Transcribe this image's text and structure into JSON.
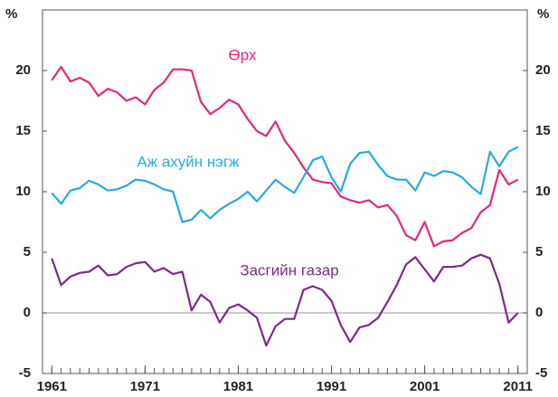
{
  "chart_data": {
    "type": "line",
    "ylabel": "%",
    "y2label": "%",
    "x": [
      1961,
      1962,
      1963,
      1964,
      1965,
      1966,
      1967,
      1968,
      1969,
      1970,
      1971,
      1972,
      1973,
      1974,
      1975,
      1976,
      1977,
      1978,
      1979,
      1980,
      1981,
      1982,
      1983,
      1984,
      1985,
      1986,
      1987,
      1988,
      1989,
      1990,
      1991,
      1992,
      1993,
      1994,
      1995,
      1996,
      1997,
      1998,
      1999,
      2000,
      2001,
      2002,
      2003,
      2004,
      2005,
      2006,
      2007,
      2008,
      2009,
      2010,
      2011
    ],
    "xlim": [
      1960,
      2012
    ],
    "xticks": [
      1961,
      1971,
      1981,
      1991,
      2001,
      2011
    ],
    "ylim": [
      -5,
      25
    ],
    "yticks": [
      -5,
      0,
      5,
      10,
      15,
      20
    ],
    "y2lim": [
      -5,
      25
    ],
    "y2ticks": [
      -5,
      0,
      5,
      10,
      15,
      20
    ],
    "series": [
      {
        "name": "Өрх",
        "color": "#e2287f",
        "values": [
          19.2,
          20.3,
          19.1,
          19.4,
          19.0,
          17.9,
          18.5,
          18.2,
          17.5,
          17.8,
          17.2,
          18.4,
          19.0,
          20.1,
          20.1,
          20.0,
          17.4,
          16.4,
          16.9,
          17.6,
          17.2,
          16.0,
          15.0,
          14.6,
          15.8,
          14.2,
          13.2,
          12.0,
          11.0,
          10.8,
          10.7,
          9.6,
          9.3,
          9.1,
          9.3,
          8.7,
          8.9,
          8.0,
          6.4,
          6.0,
          7.5,
          5.5,
          5.9,
          6.0,
          6.6,
          7.0,
          8.3,
          8.9,
          11.8,
          10.6,
          11.0
        ]
      },
      {
        "name": "Аж ахуйн нэгж",
        "color": "#2aa9e0",
        "values": [
          9.9,
          9.0,
          10.1,
          10.3,
          10.9,
          10.6,
          10.1,
          10.2,
          10.5,
          11.0,
          10.9,
          10.6,
          10.2,
          10.0,
          7.5,
          7.7,
          8.5,
          7.8,
          8.5,
          9.0,
          9.4,
          10.0,
          9.2,
          10.1,
          11.0,
          10.4,
          9.9,
          11.2,
          12.6,
          12.9,
          11.2,
          10.0,
          12.3,
          13.2,
          13.3,
          12.2,
          11.3,
          11.0,
          11.0,
          10.1,
          11.6,
          11.3,
          11.7,
          11.6,
          11.2,
          10.4,
          9.8,
          13.3,
          12.1,
          13.3,
          13.7
        ]
      },
      {
        "name": "Засгийн газар",
        "color": "#7b2b88",
        "values": [
          4.5,
          2.3,
          3.0,
          3.3,
          3.4,
          3.9,
          3.1,
          3.2,
          3.8,
          4.1,
          4.2,
          3.4,
          3.7,
          3.2,
          3.4,
          0.2,
          1.5,
          0.9,
          -0.8,
          0.4,
          0.7,
          0.2,
          -0.4,
          -2.7,
          -1.1,
          -0.5,
          -0.5,
          1.9,
          2.2,
          1.9,
          1.0,
          -1.0,
          -2.4,
          -1.2,
          -1.0,
          -0.4,
          0.9,
          2.3,
          4.0,
          4.6,
          3.6,
          2.6,
          3.8,
          3.8,
          3.9,
          4.5,
          4.8,
          4.5,
          2.4,
          -0.8,
          0.0
        ]
      }
    ]
  }
}
